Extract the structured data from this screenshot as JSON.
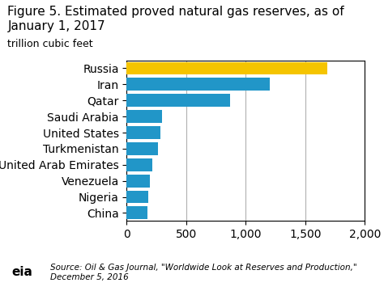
{
  "chart_data": {
    "type": "bar",
    "orientation": "horizontal",
    "title": "Figure 5. Estimated proved natural gas reserves, as of January 1, 2017",
    "subtitle": "trillion cubic feet",
    "categories": [
      "Russia",
      "Iran",
      "Qatar",
      "Saudi Arabia",
      "United States",
      "Turkmenistan",
      "United Arab Emirates",
      "Venezuela",
      "Nigeria",
      "China"
    ],
    "values": [
      1688,
      1201,
      871,
      294,
      283,
      265,
      215,
      197,
      182,
      175
    ],
    "colors": [
      "#F5C400",
      "#2196C8",
      "#2196C8",
      "#2196C8",
      "#2196C8",
      "#2196C8",
      "#2196C8",
      "#2196C8",
      "#2196C8",
      "#2196C8"
    ],
    "xlim": [
      0,
      2000
    ],
    "xticks": [
      0,
      500,
      {
        "value": 1000,
        "label": "1,000"
      },
      {
        "value": 1500,
        "label": "1,500"
      },
      {
        "value": 2000,
        "label": "2,000"
      }
    ],
    "grid": true,
    "source": [
      "Source: Oil & Gas Journal, \"Worldwide Look at Reserves and Production,\"",
      "December 5, 2016"
    ],
    "annotations": [
      "eia"
    ]
  }
}
